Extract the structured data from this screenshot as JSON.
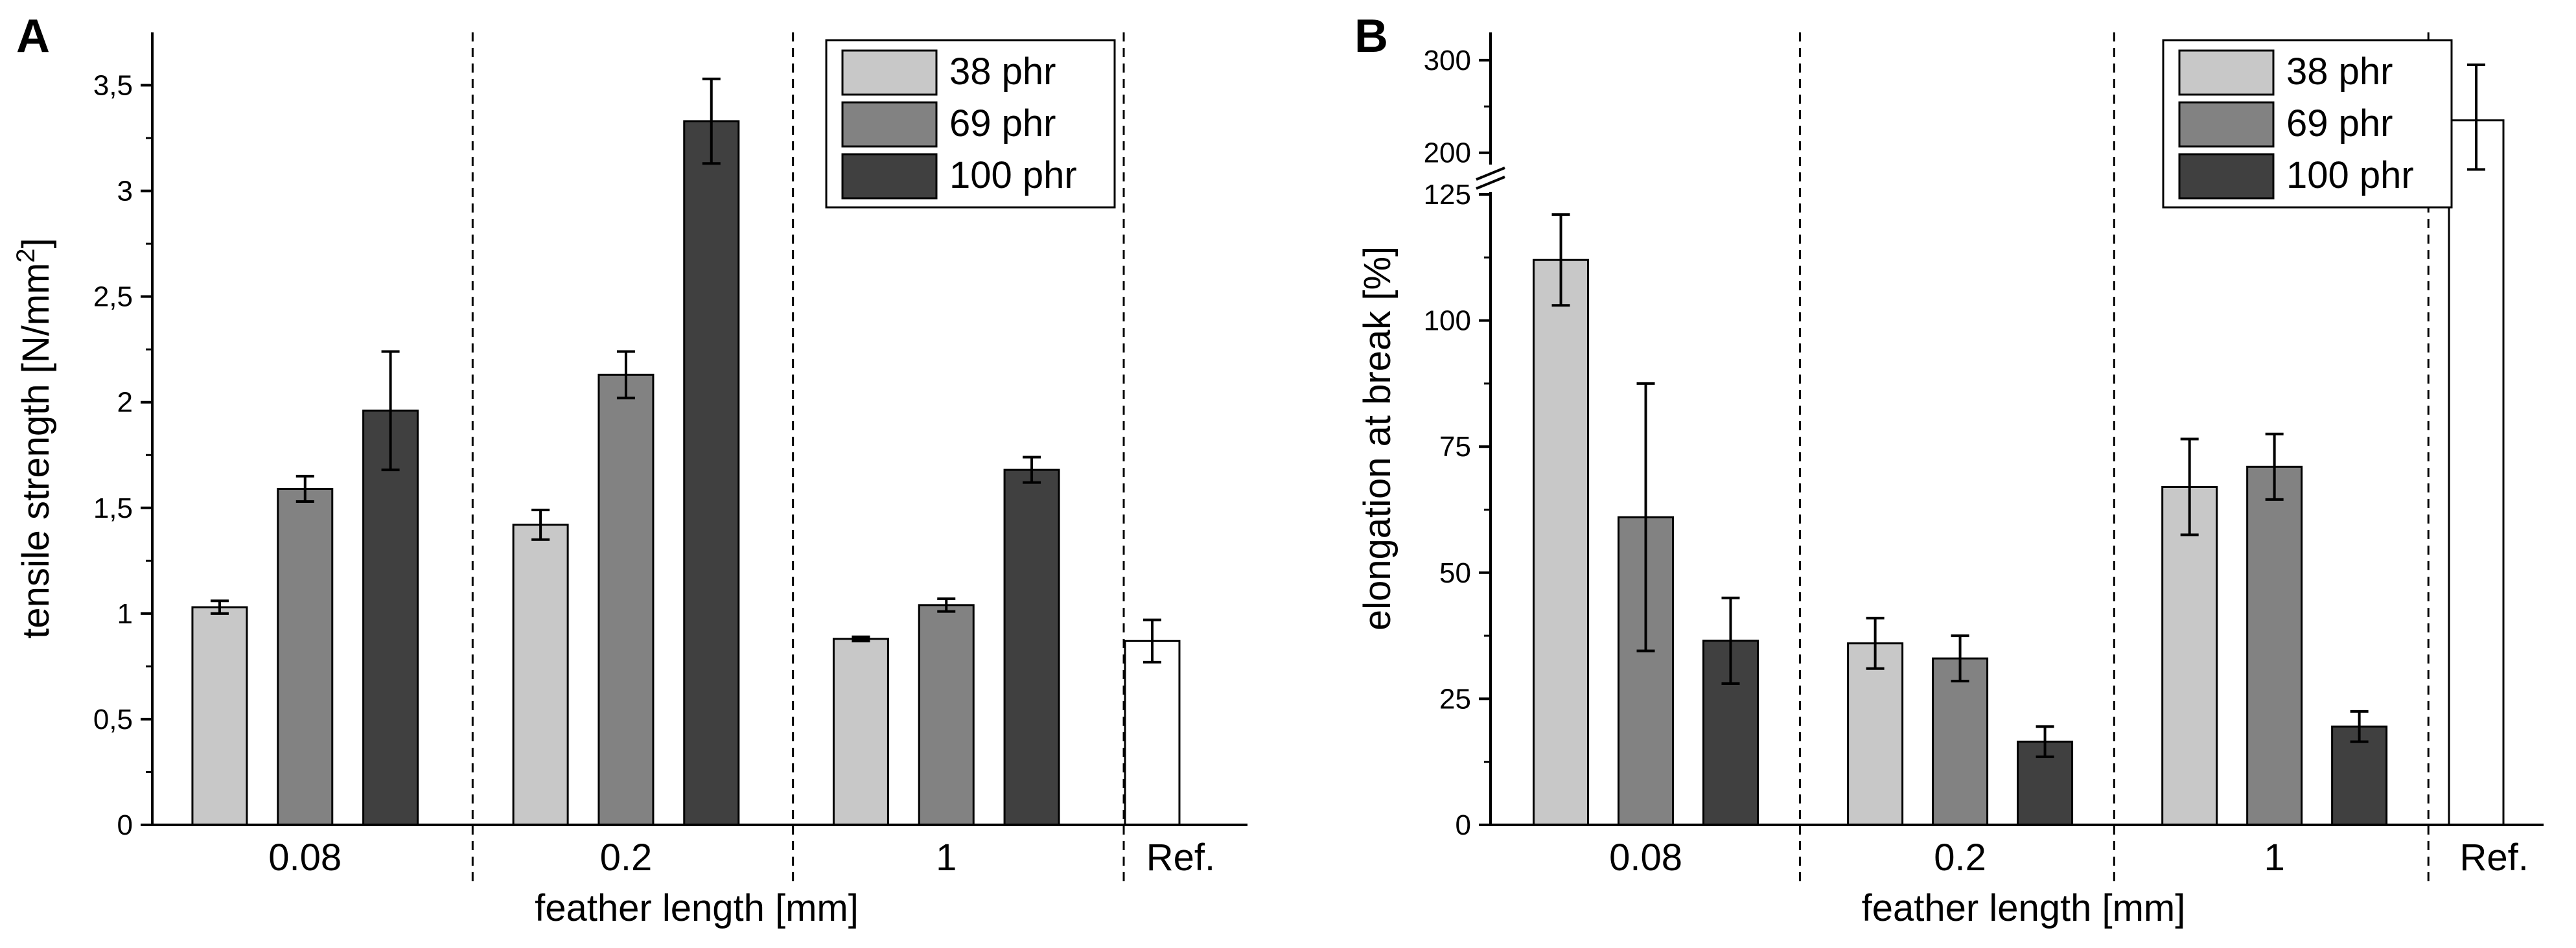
{
  "colors": {
    "38 phr": "#c8c8c8",
    "69 phr": "#828282",
    "100 phr": "#404040",
    "Ref.": "#ffffff",
    "outline": "#000000"
  },
  "chart_data": [
    {
      "panel": "A",
      "type": "bar",
      "title": "",
      "xlabel": "feather length [mm]",
      "ylabel_main": "tensile strength [N/mm",
      "ylabel_sup": "2",
      "ylabel_end": "]",
      "ylim": [
        0,
        3.75
      ],
      "yticks": [
        {
          "v": 0,
          "label": "0"
        },
        {
          "v": 0.5,
          "label": "0,5"
        },
        {
          "v": 1,
          "label": "1"
        },
        {
          "v": 1.5,
          "label": "1,5"
        },
        {
          "v": 2,
          "label": "2"
        },
        {
          "v": 2.5,
          "label": "2,5"
        },
        {
          "v": 3,
          "label": "3"
        },
        {
          "v": 3.5,
          "label": "3,5"
        }
      ],
      "groups": [
        "0.08",
        "0.2",
        "1",
        "Ref."
      ],
      "legend": [
        "38 phr",
        "69 phr",
        "100 phr"
      ],
      "legend_position": "top-right",
      "bars": [
        {
          "group": "0.08",
          "series": "38 phr",
          "value": 1.03,
          "err": 0.03
        },
        {
          "group": "0.08",
          "series": "69 phr",
          "value": 1.59,
          "err": 0.06
        },
        {
          "group": "0.08",
          "series": "100 phr",
          "value": 1.96,
          "err": 0.28
        },
        {
          "group": "0.2",
          "series": "38 phr",
          "value": 1.42,
          "err": 0.07
        },
        {
          "group": "0.2",
          "series": "69 phr",
          "value": 2.13,
          "err": 0.11
        },
        {
          "group": "0.2",
          "series": "100 phr",
          "value": 3.33,
          "err": 0.2
        },
        {
          "group": "1",
          "series": "38 phr",
          "value": 0.88,
          "err": 0.01
        },
        {
          "group": "1",
          "series": "69 phr",
          "value": 1.04,
          "err": 0.03
        },
        {
          "group": "1",
          "series": "100 phr",
          "value": 1.68,
          "err": 0.06
        },
        {
          "group": "Ref.",
          "series": "Ref.",
          "value": 0.87,
          "err": 0.1
        }
      ]
    },
    {
      "panel": "B",
      "type": "bar",
      "title": "",
      "xlabel": "feather length [mm]",
      "ylabel_main": "elongation at break [%]",
      "ylabel_sup": "",
      "ylabel_end": "",
      "ylim": [
        0,
        330
      ],
      "axis_break": {
        "lower_max": 125,
        "upper_min": 190,
        "upper_max": 330
      },
      "yticks": [
        {
          "v": 0,
          "label": "0"
        },
        {
          "v": 25,
          "label": "25"
        },
        {
          "v": 50,
          "label": "50"
        },
        {
          "v": 75,
          "label": "75"
        },
        {
          "v": 100,
          "label": "100"
        },
        {
          "v": 125,
          "label": "125"
        },
        {
          "v": 200,
          "label": "200"
        },
        {
          "v": 300,
          "label": "300"
        }
      ],
      "groups": [
        "0.08",
        "0.2",
        "1",
        "Ref."
      ],
      "legend": [
        "38 phr",
        "69 phr",
        "100 phr"
      ],
      "legend_position": "top-right",
      "bars": [
        {
          "group": "0.08",
          "series": "38 phr",
          "value": 112,
          "err": 9
        },
        {
          "group": "0.08",
          "series": "69 phr",
          "value": 61,
          "err": 26.5
        },
        {
          "group": "0.08",
          "series": "100 phr",
          "value": 36.5,
          "err": 8.5
        },
        {
          "group": "0.2",
          "series": "38 phr",
          "value": 36,
          "err": 5
        },
        {
          "group": "0.2",
          "series": "69 phr",
          "value": 33,
          "err": 4.5
        },
        {
          "group": "0.2",
          "series": "100 phr",
          "value": 16.5,
          "err": 3
        },
        {
          "group": "1",
          "series": "38 phr",
          "value": 67,
          "err": 9.5
        },
        {
          "group": "1",
          "series": "69 phr",
          "value": 71,
          "err": 6.5
        },
        {
          "group": "1",
          "series": "100 phr",
          "value": 19.5,
          "err": 3
        },
        {
          "group": "Ref.",
          "series": "Ref.",
          "value": 235,
          "err": 60
        }
      ]
    }
  ]
}
